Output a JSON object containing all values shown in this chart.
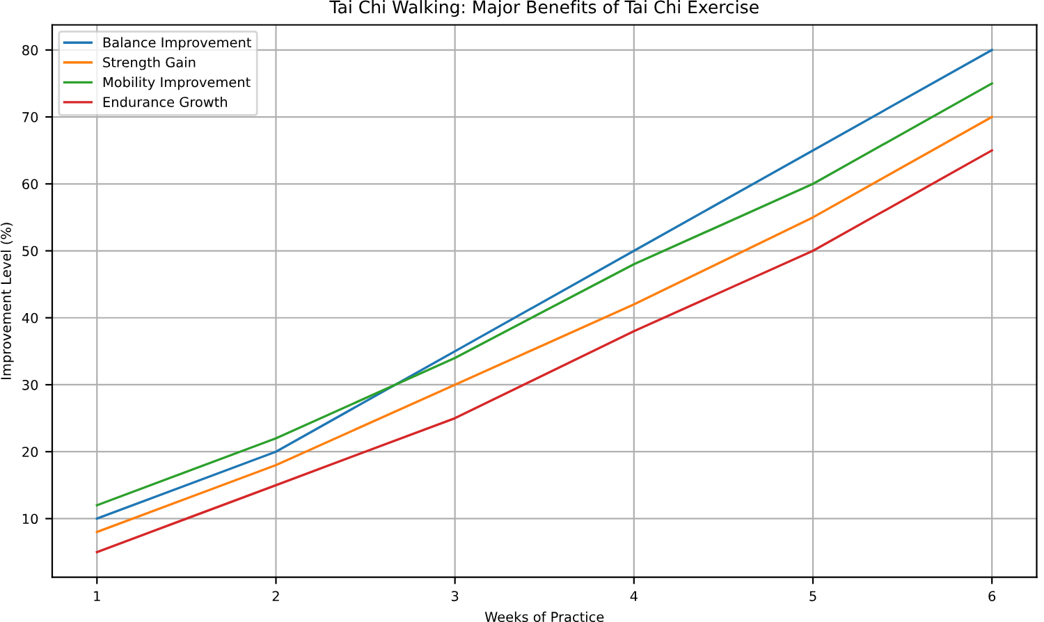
{
  "chart_data": {
    "type": "line",
    "title": "Tai Chi Walking: Major Benefits of Tai Chi Exercise",
    "xlabel": "Weeks of Practice",
    "ylabel": "Improvement Level (%)",
    "x": [
      1,
      2,
      3,
      4,
      5,
      6
    ],
    "series": [
      {
        "name": "Balance Improvement",
        "color": "#1f77b4",
        "values": [
          10,
          20,
          35,
          50,
          65,
          80
        ]
      },
      {
        "name": "Strength Gain",
        "color": "#ff7f0e",
        "values": [
          8,
          18,
          30,
          42,
          55,
          70
        ]
      },
      {
        "name": "Mobility Improvement",
        "color": "#2ca02c",
        "values": [
          12,
          22,
          34,
          48,
          60,
          75
        ]
      },
      {
        "name": "Endurance Growth",
        "color": "#d62728",
        "values": [
          5,
          15,
          25,
          38,
          50,
          65
        ]
      }
    ],
    "xlim": [
      0.75,
      6.25
    ],
    "xticks": [
      1,
      2,
      3,
      4,
      5,
      6
    ],
    "ylim": [
      1.25,
      83.75
    ],
    "yticks": [
      10,
      20,
      30,
      40,
      50,
      60,
      70,
      80
    ],
    "grid": true,
    "legend": "top left",
    "marker": "none",
    "line_style": "solid"
  }
}
